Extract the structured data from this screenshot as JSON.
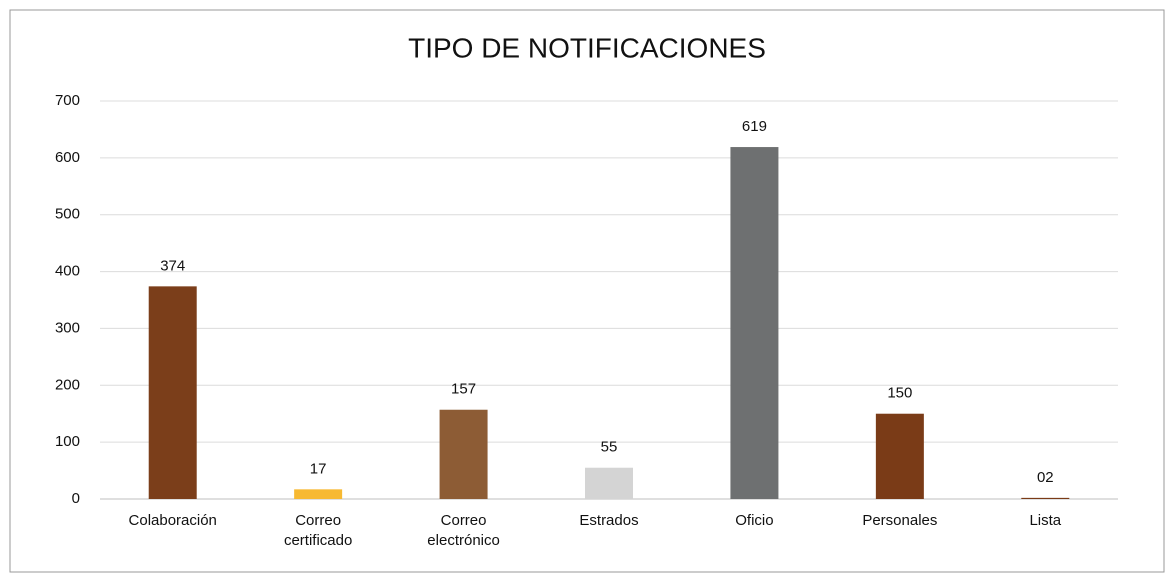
{
  "chart_data": {
    "type": "bar",
    "title": "TIPO DE NOTIFICACIONES",
    "categories": [
      "Colaboración",
      "Correo certificado",
      "Correo electrónico",
      "Estrados",
      "Oficio",
      "Personales",
      "Lista"
    ],
    "values": [
      374,
      17,
      157,
      55,
      619,
      150,
      2
    ],
    "value_labels": [
      "374",
      "17",
      "157",
      "55",
      "619",
      "150",
      "02"
    ],
    "colors": [
      "#7b3e1a",
      "#f7b932",
      "#8d5c35",
      "#d4d4d4",
      "#6e7071",
      "#7a3b17",
      "#7a3b17"
    ],
    "ylim": [
      0,
      700
    ],
    "yticks": [
      0,
      100,
      200,
      300,
      400,
      500,
      600,
      700
    ],
    "grid": true
  }
}
